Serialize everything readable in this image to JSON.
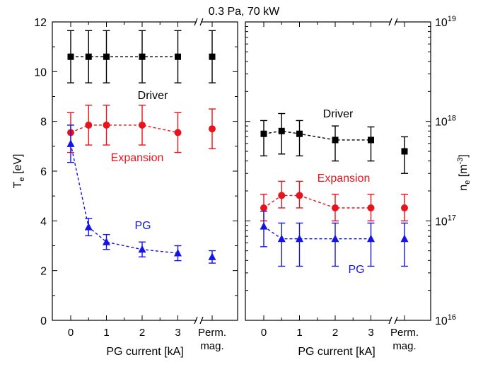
{
  "figure": {
    "title": "0.3 Pa, 70 kW",
    "xlabel_left": "PG current [kA]",
    "xlabel_right": "PG current [kA]",
    "ylabel_left_main": "T",
    "ylabel_left_sub": "e",
    "ylabel_left_unit": " [eV]",
    "ylabel_right_main": "n",
    "ylabel_right_sub": "e",
    "ylabel_right_unit": " [m",
    "ylabel_right_sup": "-3",
    "ylabel_right_close": "]"
  },
  "colors": {
    "driver": "#000000",
    "expansion": "#e8141b",
    "pg": "#1414e6"
  },
  "chart_data": [
    {
      "type": "line",
      "panel": "left",
      "xlabel": "PG current [kA]",
      "ylabel": "Te [eV]",
      "x_tick_labels": [
        "0",
        "1",
        "2",
        "3",
        "Perm.",
        "mag."
      ],
      "y_ticks": [
        "0",
        "2",
        "4",
        "6",
        "8",
        "10",
        "12"
      ],
      "ylim": [
        0,
        12
      ],
      "y_scale": "linear",
      "axis_break": "between 3 and Perm. mag.",
      "series": [
        {
          "name": "Driver",
          "color": "#000000",
          "marker": "square",
          "x": [
            0,
            0.5,
            1,
            2,
            3
          ],
          "y": [
            10.6,
            10.6,
            10.6,
            10.6,
            10.6
          ],
          "err": [
            1.05,
            1.05,
            1.05,
            1.05,
            1.05
          ],
          "perm_mag": {
            "y": 10.6,
            "err": 1.05
          }
        },
        {
          "name": "Expansion",
          "color": "#e8141b",
          "marker": "circle",
          "x": [
            0,
            0.5,
            1,
            2,
            3
          ],
          "y": [
            7.55,
            7.85,
            7.85,
            7.85,
            7.55
          ],
          "err": [
            0.8,
            0.8,
            0.8,
            0.8,
            0.8
          ],
          "perm_mag": {
            "y": 7.7,
            "err": 0.8
          }
        },
        {
          "name": "PG",
          "color": "#1414e6",
          "marker": "triangle",
          "x": [
            0,
            0.5,
            1,
            2,
            3
          ],
          "y": [
            7.1,
            3.75,
            3.15,
            2.85,
            2.7
          ],
          "err": [
            0.75,
            0.35,
            0.3,
            0.3,
            0.3
          ],
          "perm_mag": {
            "y": 2.55,
            "err": 0.25
          }
        }
      ]
    },
    {
      "type": "line",
      "panel": "right",
      "xlabel": "PG current [kA]",
      "ylabel": "ne [m-3]",
      "x_tick_labels": [
        "0",
        "1",
        "2",
        "3",
        "Perm.",
        "mag."
      ],
      "y_ticks": [
        "10^16",
        "10^17",
        "10^18",
        "10^19"
      ],
      "ylim": [
        1e+16,
        1e+19
      ],
      "y_scale": "log",
      "axis_break": "between 3 and Perm. mag.",
      "series": [
        {
          "name": "Driver",
          "color": "#000000",
          "marker": "square",
          "x": [
            0,
            0.5,
            1,
            2,
            3
          ],
          "y": [
            7.5e+17,
            8e+17,
            7.5e+17,
            6.5e+17,
            6.5e+17
          ],
          "err_low": [
            4.5e+17,
            4.7e+17,
            4.5e+17,
            4e+17,
            4e+17
          ],
          "err_high": [
            1.02e+18,
            1.2e+18,
            1.02e+18,
            9e+17,
            8.8e+17
          ],
          "perm_mag": {
            "y": 5e+17,
            "err_low": 3e+17,
            "err_high": 7e+17
          }
        },
        {
          "name": "Expansion",
          "color": "#e8141b",
          "marker": "circle",
          "x": [
            0,
            0.5,
            1,
            2,
            3
          ],
          "y": [
            1.35e+17,
            1.8e+17,
            1.8e+17,
            1.35e+17,
            1.35e+17
          ],
          "err_low": [
            1e+17,
            1.35e+17,
            1.35e+17,
            1e+17,
            1e+17
          ],
          "err_high": [
            1.85e+17,
            2.5e+17,
            2.5e+17,
            1.85e+17,
            1.85e+17
          ],
          "perm_mag": {
            "y": 1.35e+17,
            "err_low": 1e+17,
            "err_high": 1.85e+17
          }
        },
        {
          "name": "PG",
          "color": "#1414e6",
          "marker": "triangle",
          "x": [
            0,
            0.5,
            1,
            2,
            3
          ],
          "y": [
            8.8e+16,
            6.6e+16,
            6.6e+16,
            6.6e+16,
            6.6e+16
          ],
          "err_low": [
            5.5e+16,
            3.5e+16,
            3.5e+16,
            3.5e+16,
            3.5e+16
          ],
          "err_high": [
            1.25e+17,
            9.5e+16,
            9.5e+16,
            9.5e+16,
            9.5e+16
          ],
          "perm_mag": {
            "y": 6.6e+16,
            "err_low": 3.5e+16,
            "err_high": 9.5e+16
          }
        }
      ]
    }
  ]
}
